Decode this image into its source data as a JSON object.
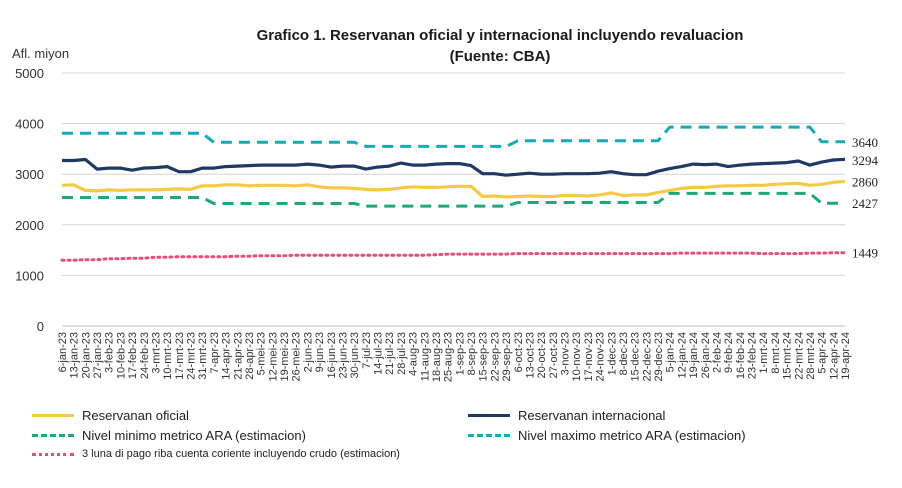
{
  "chart_data": {
    "type": "line",
    "title_line1": "Grafico 1. Reservanan oficial y internacional incluyendo revaluacion",
    "title_line2": "(Fuente: CBA)",
    "ylabel": "Afl. miyon",
    "ylim": [
      0,
      5000
    ],
    "yticks": [
      "0",
      "1000",
      "2000",
      "3000",
      "4000",
      "5000"
    ],
    "x": [
      "6-jan-23",
      "13-jan-23",
      "20-jan-23",
      "27-jan-23",
      "3-feb-23",
      "10-feb-23",
      "17-feb-23",
      "24-feb-23",
      "3-mrt-23",
      "10-mrt-23",
      "17-mrt-23",
      "24-mrt-23",
      "31-mrt-23",
      "7-apr-23",
      "14-apr-23",
      "21-apr-23",
      "28-apr-23",
      "5-mei-23",
      "12-mei-23",
      "19-mei-23",
      "26-mei-23",
      "2-jun-23",
      "9-jun-23",
      "16-jun-23",
      "23-jun-23",
      "30-jun-23",
      "7-jul-23",
      "14-jul-23",
      "21-jul-23",
      "28-jul-23",
      "4-aug-23",
      "11-aug-23",
      "18-aug-23",
      "25-aug-23",
      "1-sep-23",
      "8-sep-23",
      "15-sep-23",
      "22-sep-23",
      "29-sep-23",
      "6-oct-23",
      "13-oct-23",
      "20-oct-23",
      "27-oct-23",
      "3-nov-23",
      "10-nov-23",
      "17-nov-23",
      "24-nov-23",
      "1-dec-23",
      "8-dec-23",
      "15-dec-23",
      "22-dec-23",
      "29-dec-23",
      "5-jan-24",
      "12-jan-24",
      "19-jan-24",
      "26-jan-24",
      "2-feb-24",
      "9-feb-24",
      "16-feb-24",
      "23-feb-24",
      "1-mrt-24",
      "8-mrt-24",
      "15-mrt-24",
      "22-mrt-24",
      "28-mrt-24",
      "5-apr-24",
      "12-apr-24",
      "19-apr-24"
    ],
    "series": [
      {
        "name": "Reservanan oficial",
        "color": "#F5C945",
        "dash": "solid",
        "values": [
          2780,
          2790,
          2680,
          2670,
          2690,
          2680,
          2690,
          2690,
          2690,
          2700,
          2710,
          2700,
          2770,
          2770,
          2790,
          2790,
          2770,
          2780,
          2780,
          2780,
          2770,
          2790,
          2750,
          2730,
          2730,
          2720,
          2700,
          2690,
          2700,
          2730,
          2750,
          2740,
          2740,
          2750,
          2760,
          2760,
          2560,
          2570,
          2550,
          2560,
          2570,
          2560,
          2560,
          2580,
          2580,
          2570,
          2590,
          2630,
          2580,
          2590,
          2590,
          2640,
          2680,
          2720,
          2740,
          2740,
          2760,
          2770,
          2770,
          2780,
          2780,
          2800,
          2810,
          2820,
          2780,
          2800,
          2840,
          2860
        ]
      },
      {
        "name": "Reservanan internacional",
        "color": "#1F3864",
        "dash": "solid",
        "values": [
          3270,
          3270,
          3290,
          3100,
          3120,
          3120,
          3080,
          3120,
          3130,
          3150,
          3050,
          3050,
          3120,
          3120,
          3150,
          3160,
          3170,
          3180,
          3180,
          3180,
          3180,
          3200,
          3180,
          3140,
          3160,
          3160,
          3100,
          3140,
          3160,
          3220,
          3180,
          3180,
          3200,
          3210,
          3210,
          3170,
          3010,
          3010,
          2980,
          3000,
          3020,
          3000,
          3000,
          3010,
          3010,
          3010,
          3020,
          3050,
          3010,
          2990,
          2990,
          3060,
          3110,
          3150,
          3200,
          3190,
          3200,
          3150,
          3180,
          3200,
          3210,
          3220,
          3230,
          3260,
          3180,
          3240,
          3280,
          3294
        ]
      },
      {
        "name": "Nivel minimo metrico ARA (estimacion)",
        "color": "#1FA875",
        "dash": "dashed",
        "values": [
          2540,
          2540,
          2540,
          2540,
          2540,
          2540,
          2540,
          2540,
          2540,
          2540,
          2540,
          2540,
          2540,
          2420,
          2420,
          2420,
          2420,
          2420,
          2420,
          2420,
          2420,
          2420,
          2420,
          2420,
          2420,
          2420,
          2370,
          2370,
          2370,
          2370,
          2370,
          2370,
          2370,
          2370,
          2370,
          2370,
          2370,
          2370,
          2370,
          2440,
          2440,
          2440,
          2440,
          2440,
          2440,
          2440,
          2440,
          2440,
          2440,
          2440,
          2440,
          2440,
          2620,
          2620,
          2620,
          2620,
          2620,
          2620,
          2620,
          2620,
          2620,
          2620,
          2620,
          2620,
          2620,
          2427,
          2427,
          2427
        ]
      },
      {
        "name": "Nivel maximo metrico ARA (estimacion)",
        "color": "#17A8B8",
        "dash": "dashed",
        "values": [
          3810,
          3810,
          3810,
          3810,
          3810,
          3810,
          3810,
          3810,
          3810,
          3810,
          3810,
          3810,
          3810,
          3630,
          3630,
          3630,
          3630,
          3630,
          3630,
          3630,
          3630,
          3630,
          3630,
          3630,
          3630,
          3630,
          3550,
          3550,
          3550,
          3550,
          3550,
          3550,
          3550,
          3550,
          3550,
          3550,
          3550,
          3550,
          3550,
          3660,
          3660,
          3660,
          3660,
          3660,
          3660,
          3660,
          3660,
          3660,
          3660,
          3660,
          3660,
          3660,
          3930,
          3930,
          3930,
          3930,
          3930,
          3930,
          3930,
          3930,
          3930,
          3930,
          3930,
          3930,
          3930,
          3640,
          3640,
          3640
        ]
      },
      {
        "name": "3 luna di pago riba cuenta coriente incluyendo crudo (estimacion)",
        "color": "#E0507A",
        "dash": "dotted",
        "values": [
          1300,
          1300,
          1310,
          1310,
          1330,
          1330,
          1340,
          1340,
          1360,
          1360,
          1370,
          1370,
          1370,
          1370,
          1370,
          1380,
          1380,
          1390,
          1390,
          1390,
          1400,
          1400,
          1400,
          1400,
          1400,
          1400,
          1400,
          1400,
          1400,
          1400,
          1400,
          1400,
          1410,
          1420,
          1420,
          1420,
          1420,
          1420,
          1420,
          1430,
          1430,
          1430,
          1430,
          1430,
          1430,
          1430,
          1430,
          1430,
          1430,
          1430,
          1430,
          1430,
          1430,
          1440,
          1440,
          1440,
          1440,
          1440,
          1440,
          1440,
          1430,
          1430,
          1430,
          1430,
          1440,
          1440,
          1449,
          1449
        ]
      }
    ],
    "end_labels": [
      "3640",
      "3294",
      "2860",
      "2427",
      "1449"
    ]
  }
}
